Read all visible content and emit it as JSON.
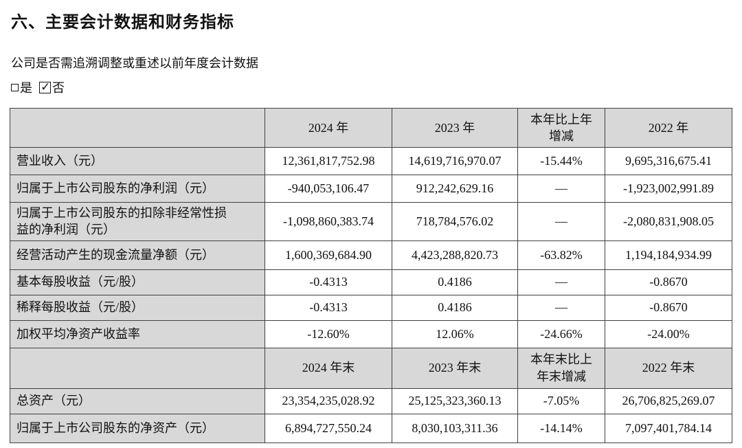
{
  "page": {
    "title": "六、主要会计数据和财务指标",
    "question": "公司是否需追溯调整或重述以前年度会计数据",
    "options": {
      "yes_label": "是",
      "no_label": "否"
    }
  },
  "icons": {
    "check": "✓"
  },
  "colors": {
    "header_fill": "#d8d8d8",
    "border": "#404040",
    "text": "#111111",
    "background": "#ffffff"
  },
  "table": {
    "annual_header": {
      "y2024": "2024 年",
      "y2023": "2023 年",
      "change": "本年比上年增减",
      "y2022": "2022 年"
    },
    "annual_rows": [
      {
        "label": "营业收入（元）",
        "y2024": "12,361,817,752.98",
        "y2023": "14,619,716,970.07",
        "change": "-15.44%",
        "y2022": "9,695,316,675.41"
      },
      {
        "label": "归属于上市公司股东的净利润（元）",
        "y2024": "-940,053,106.47",
        "y2023": "912,242,629.16",
        "change": "—",
        "y2022": "-1,923,002,991.89"
      },
      {
        "label": "归属于上市公司股东的扣除非经常性损益的净利润（元）",
        "y2024": "-1,098,860,383.74",
        "y2023": "718,784,576.02",
        "change": "—",
        "y2022": "-2,080,831,908.05"
      },
      {
        "label": "经营活动产生的现金流量净额（元）",
        "y2024": "1,600,369,684.90",
        "y2023": "4,423,288,820.73",
        "change": "-63.82%",
        "y2022": "1,194,184,934.99"
      },
      {
        "label": "基本每股收益（元/股）",
        "y2024": "-0.4313",
        "y2023": "0.4186",
        "change": "—",
        "y2022": "-0.8670"
      },
      {
        "label": "稀释每股收益（元/股）",
        "y2024": "-0.4313",
        "y2023": "0.4186",
        "change": "—",
        "y2022": "-0.8670"
      },
      {
        "label": "加权平均净资产收益率",
        "y2024": "-12.60%",
        "y2023": "12.06%",
        "change": "-24.66%",
        "y2022": "-24.00%"
      }
    ],
    "period_end_header": {
      "y2024": "2024 年末",
      "y2023": "2023 年末",
      "change": "本年末比上年末增减",
      "y2022": "2022 年末"
    },
    "period_end_rows": [
      {
        "label": "总资产（元）",
        "y2024": "23,354,235,028.92",
        "y2023": "25,125,323,360.13",
        "change": "-7.05%",
        "y2022": "26,706,825,269.07"
      },
      {
        "label": "归属于上市公司股东的净资产（元）",
        "y2024": "6,894,727,550.24",
        "y2023": "8,030,103,311.36",
        "change": "-14.14%",
        "y2022": "7,097,401,784.14"
      }
    ]
  }
}
